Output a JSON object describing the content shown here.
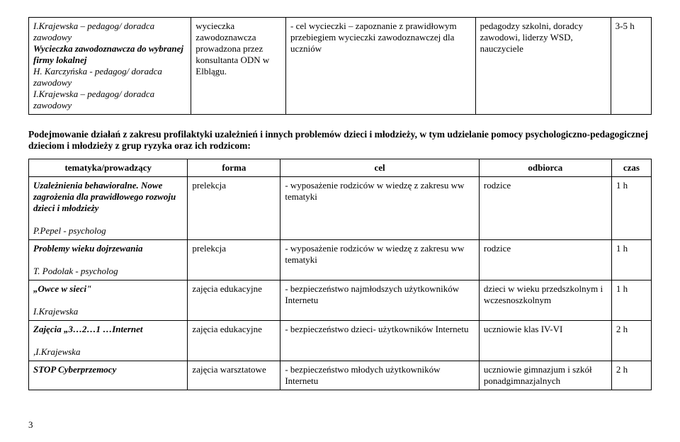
{
  "table1": {
    "row": {
      "col1_lines": [
        {
          "text": "I.Krajewska – pedagog/ doradca zawodowy",
          "style": "italic"
        },
        {
          "text": "Wycieczka zawodoznawcza do wybranej firmy lokalnej",
          "style": "bold italic"
        },
        {
          "text": "H. Karczyńska - pedagog/ doradca zawodowy",
          "style": "italic"
        },
        {
          "text": "I.Krajewska – pedagog/ doradca zawodowy",
          "style": "italic"
        }
      ],
      "col2": "wycieczka zawodoznawcza prowadzona przez konsultanta ODN w Elblągu.",
      "col3": "- cel wycieczki – zapoznanie z prawidłowym przebiegiem wycieczki zawodoznawczej dla uczniów",
      "col4": "pedagodzy szkolni, doradcy zawodowi, liderzy WSD, nauczyciele",
      "col5": "3-5 h"
    }
  },
  "section_heading": "Podejmowanie działań z zakresu profilaktyki uzależnień i innych problemów dzieci i młodzieży, w tym udzielanie pomocy psychologiczno-pedagogicznej dzieciom i młodzieży z grup ryzyka oraz ich rodzicom:",
  "table2": {
    "headers": [
      "tematyka/prowadzący",
      "forma",
      "cel",
      "odbiorca",
      "czas"
    ],
    "rows": [
      {
        "c1": [
          {
            "text": "Uzależnienia behawioralne. Nowe zagrożenia dla prawidłowego rozwoju dzieci i młodzieży",
            "style": "bold italic"
          },
          {
            "text": "",
            "style": ""
          },
          {
            "text": "P.Pepel - psycholog",
            "style": "italic"
          }
        ],
        "c2": "prelekcja",
        "c3": "- wyposażenie rodziców w wiedzę z zakresu ww tematyki",
        "c4": "rodzice",
        "c5": "1 h"
      },
      {
        "c1": [
          {
            "text": "Problemy wieku dojrzewania",
            "style": "bold italic"
          },
          {
            "text": "",
            "style": ""
          },
          {
            "text": "T. Podolak - psycholog",
            "style": "italic"
          }
        ],
        "c2": "prelekcja",
        "c3": "- wyposażenie rodziców w wiedzę z zakresu ww tematyki",
        "c4": "rodzice",
        "c5": "1 h"
      },
      {
        "c1": [
          {
            "text": "„Owce w sieci\"",
            "style": "bold italic"
          },
          {
            "text": "",
            "style": ""
          },
          {
            "text": "I.Krajewska",
            "style": "italic"
          }
        ],
        "c2": "zajęcia edukacyjne",
        "c3": "- bezpieczeństwo najmłodszych użytkowników Internetu",
        "c4": "dzieci w wieku przedszkolnym i wczesnoszkolnym",
        "c5": "1 h"
      },
      {
        "c1": [
          {
            "text": "Zajęcia „3…2…1 …Internet",
            "style": "bold italic"
          },
          {
            "text": "",
            "style": ""
          },
          {
            "text": ",I.Krajewska",
            "style": "italic"
          }
        ],
        "c2": "zajęcia edukacyjne",
        "c3": "- bezpieczeństwo dzieci- użytkowników Internetu",
        "c4": "uczniowie klas IV-VI",
        "c5": "2 h"
      },
      {
        "c1": [
          {
            "text": "STOP Cyberprzemocy",
            "style": "bold italic"
          }
        ],
        "c2": "zajęcia warsztatowe",
        "c3": "- bezpieczeństwo młodych użytkowników Internetu",
        "c4": "uczniowie gimnazjum i szkół ponadgimnazjalnych",
        "c5": "2 h"
      }
    ]
  },
  "page_number": "3"
}
